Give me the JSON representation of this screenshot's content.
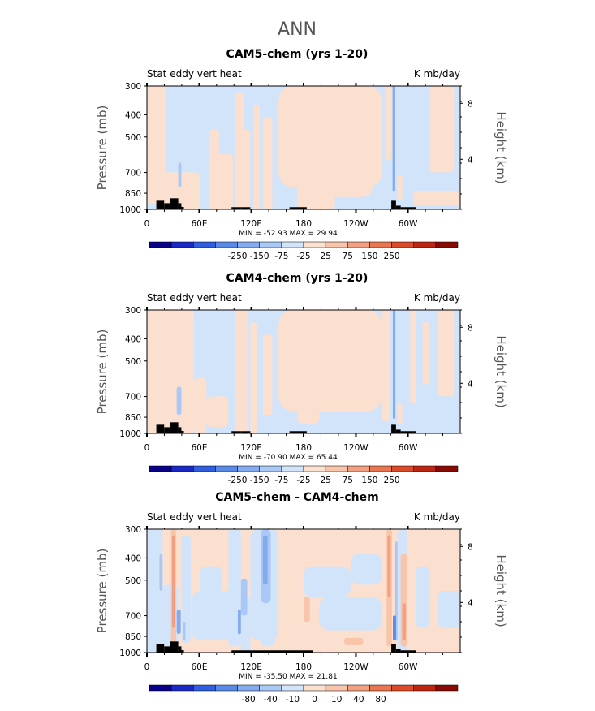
{
  "figure_title": "ANN",
  "colors": {
    "land": "#000000",
    "frame": "#000000",
    "palette": [
      "#08008a",
      "#1a28c8",
      "#2f5fe0",
      "#5a8ae8",
      "#84aaf0",
      "#a9c8f5",
      "#d2e4fa",
      "#fbe0cf",
      "#f8c4aa",
      "#f2a080",
      "#ea7550",
      "#dc4a28",
      "#be2612",
      "#8a0a05"
    ]
  },
  "chart_data": [
    {
      "type": "heatmap",
      "title": "CAM5-chem (yrs 1-20)",
      "left_label": "Stat eddy vert heat",
      "right_label": "K mb/day",
      "ylabel": "Pressure (mb)",
      "ylabel_right": "Height (km)",
      "x_tick_labels": [
        "0",
        "60E",
        "120E",
        "180",
        "120W",
        "60W"
      ],
      "y_tick_labels": [
        "300",
        "400",
        "500",
        "700",
        "850",
        "1000"
      ],
      "y_right_tick_labels": [
        "8",
        "4"
      ],
      "min_max_text": "MIN = -52.93   MAX =  29.94",
      "colorbar_labels": [
        "-250",
        "-150",
        "-75",
        "-25",
        "25",
        "75",
        "150",
        "250"
      ]
    },
    {
      "type": "heatmap",
      "title": "CAM4-chem (yrs 1-20)",
      "left_label": "Stat eddy vert heat",
      "right_label": "K mb/day",
      "ylabel": "Pressure (mb)",
      "ylabel_right": "Height (km)",
      "x_tick_labels": [
        "0",
        "60E",
        "120E",
        "180",
        "120W",
        "60W"
      ],
      "y_tick_labels": [
        "300",
        "400",
        "500",
        "700",
        "850",
        "1000"
      ],
      "y_right_tick_labels": [
        "8",
        "4"
      ],
      "min_max_text": "MIN = -70.90   MAX =  65.44",
      "colorbar_labels": [
        "-250",
        "-150",
        "-75",
        "-25",
        "25",
        "75",
        "150",
        "250"
      ]
    },
    {
      "type": "heatmap",
      "title": "CAM5-chem - CAM4-chem",
      "left_label": "Stat eddy vert heat",
      "right_label": "K mb/day",
      "ylabel": "Pressure (mb)",
      "ylabel_right": "Height (km)",
      "x_tick_labels": [
        "0",
        "60E",
        "120E",
        "180",
        "120W",
        "60W"
      ],
      "y_tick_labels": [
        "300",
        "400",
        "500",
        "700",
        "850",
        "1000"
      ],
      "y_right_tick_labels": [
        "8",
        "4"
      ],
      "min_max_text": "MIN = -35.50   MAX =  21.81",
      "colorbar_labels": [
        "-80",
        "-40",
        "-10",
        "0",
        "10",
        "40",
        "80"
      ]
    }
  ]
}
